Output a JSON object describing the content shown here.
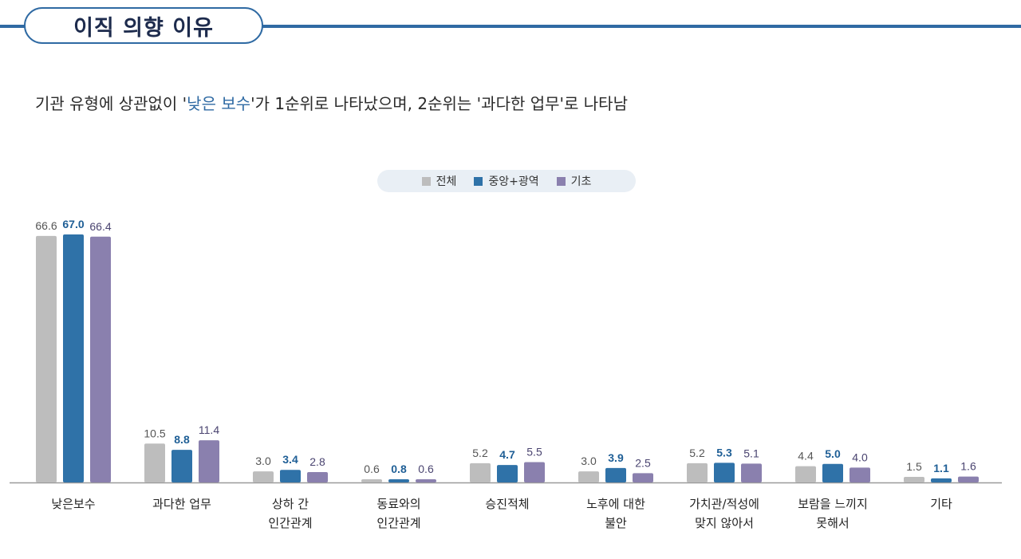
{
  "header": {
    "title": "이직 의향 이유",
    "subtitle_pre": "기관 유형에 상관없이 '",
    "subtitle_highlight": "낮은 보수",
    "subtitle_post": "'가 1순위로 나타났으며, 2순위는 '과다한 업무'로 나타남"
  },
  "colors": {
    "accent": "#2f6aa3",
    "series": [
      "#bdbdbd",
      "#2f72a8",
      "#8a80ae"
    ],
    "value_text": [
      "#555555",
      "#1f5f96",
      "#4a4470"
    ]
  },
  "chart_data": {
    "type": "bar",
    "categories": [
      [
        "낮은보수"
      ],
      [
        "과다한 업무"
      ],
      [
        "상하 간",
        "인간관계"
      ],
      [
        "동료와의",
        "인간관계"
      ],
      [
        "승진적체"
      ],
      [
        "노후에 대한",
        "불안"
      ],
      [
        "가치관/적성에",
        "맞지 않아서"
      ],
      [
        "보람을 느끼지",
        "못해서"
      ],
      [
        "기타"
      ]
    ],
    "series": [
      {
        "name": "전체",
        "values": [
          66.6,
          10.5,
          3.0,
          0.6,
          5.2,
          3.0,
          5.2,
          4.4,
          1.5
        ],
        "labels": [
          "66.6",
          "10.5",
          "3.0",
          "0.6",
          "5.2",
          "3.0",
          "5.2",
          "4.4",
          "1.5"
        ]
      },
      {
        "name": "중앙+광역",
        "values": [
          67.0,
          8.8,
          3.4,
          0.8,
          4.7,
          3.9,
          5.3,
          5.0,
          1.1
        ],
        "labels": [
          "67.0",
          "8.8",
          "3.4",
          "0.8",
          "4.7",
          "3.9",
          "5.3",
          "5.0",
          "1.1"
        ]
      },
      {
        "name": "기초",
        "values": [
          66.4,
          11.4,
          2.8,
          0.6,
          5.5,
          2.5,
          5.1,
          4.0,
          1.6
        ],
        "labels": [
          "66.4",
          "11.4",
          "2.8",
          "0.6",
          "5.5",
          "2.5",
          "5.1",
          "4.0",
          "1.6"
        ]
      }
    ],
    "ylim": [
      0,
      67
    ],
    "legend": "top-center",
    "grid": false
  }
}
